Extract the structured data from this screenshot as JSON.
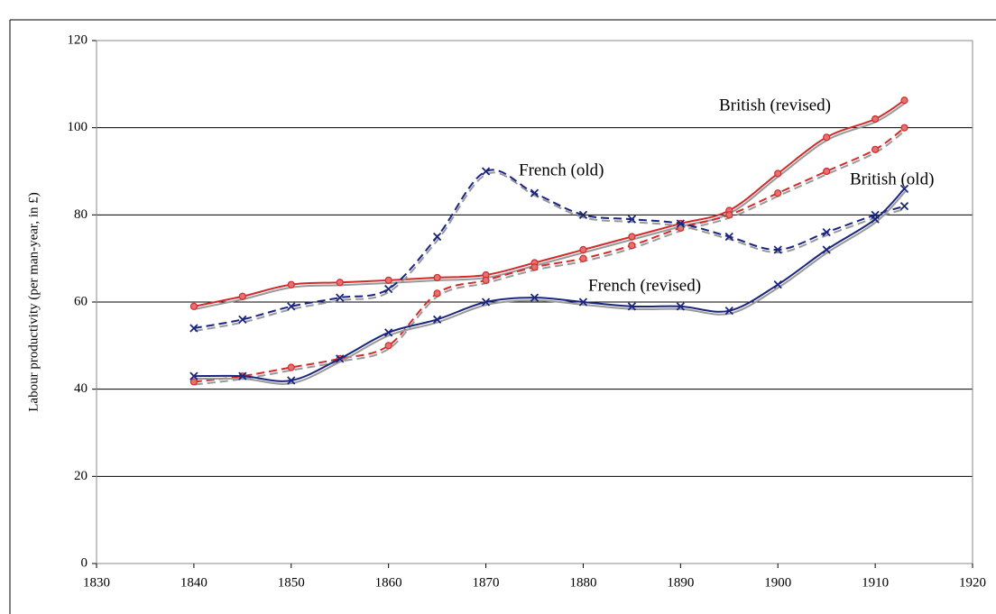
{
  "chart_data": {
    "type": "line",
    "y_label": "Labour productivity (per man-year, in £)",
    "x": [
      1840,
      1845,
      1850,
      1855,
      1860,
      1865,
      1870,
      1875,
      1880,
      1885,
      1890,
      1895,
      1900,
      1905,
      1910,
      1913
    ],
    "series": [
      {
        "name": "British (revised)",
        "color": "#d42a2a",
        "dashed": false,
        "marker": "circle",
        "values": [
          59,
          61.3,
          64,
          64.5,
          65,
          65.6,
          66.2,
          69,
          72,
          75,
          78,
          81,
          89.5,
          97.8,
          102,
          106.3
        ]
      },
      {
        "name": "British (old)",
        "color": "#d42a2a",
        "dashed": true,
        "marker": "circle",
        "values": [
          41.7,
          43,
          45,
          47,
          50,
          62,
          65,
          68,
          70,
          73,
          77,
          80,
          85,
          90,
          95,
          100
        ]
      },
      {
        "name": "French (old)",
        "color": "#1a2580",
        "dashed": true,
        "marker": "x",
        "values": [
          54,
          56,
          59,
          61,
          63,
          75,
          90,
          85,
          80,
          79,
          78,
          75,
          72,
          76,
          80,
          82
        ]
      },
      {
        "name": "French (revised)",
        "color": "#1a2580",
        "dashed": false,
        "marker": "x",
        "values": [
          43,
          43,
          42,
          47,
          53,
          56,
          60,
          61,
          60,
          59,
          59,
          58,
          64,
          72,
          79,
          86
        ]
      }
    ],
    "xlim": [
      1830,
      1920
    ],
    "xticks": [
      1830,
      1840,
      1850,
      1860,
      1870,
      1880,
      1890,
      1900,
      1910,
      1920
    ],
    "ylim": [
      0,
      120
    ],
    "yticks": [
      0,
      20,
      40,
      60,
      80,
      100,
      120
    ],
    "grid": true
  }
}
